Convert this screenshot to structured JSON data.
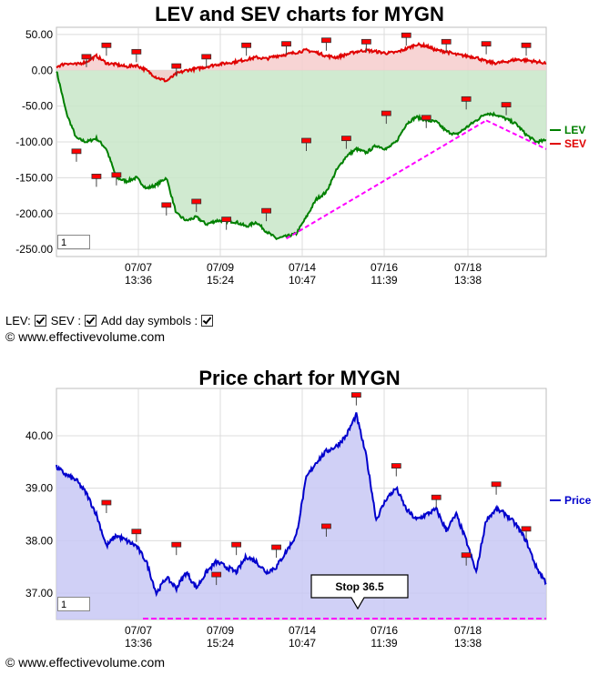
{
  "chart_data": [
    {
      "type": "line",
      "title": "LEV and SEV charts for MYGN",
      "ylim": [
        -260,
        60
      ],
      "yticks": [
        50,
        0,
        -50,
        -100,
        -150,
        -200,
        -250
      ],
      "ytick_labels": [
        "50.00",
        "0.00",
        "-50.00",
        "-100.00",
        "-150.00",
        "-200.00",
        "-250.00"
      ],
      "xticks": [
        {
          "date": "07/07",
          "time": "13:36"
        },
        {
          "date": "07/09",
          "time": "15:24"
        },
        {
          "date": "07/14",
          "time": "10:47"
        },
        {
          "date": "07/16",
          "time": "11:39"
        },
        {
          "date": "07/18",
          "time": "13:38"
        }
      ],
      "legend_position": "right",
      "grid": true,
      "series": [
        {
          "name": "LEV",
          "color": "#008000",
          "fill": "#c8e6c8",
          "values": [
            0,
            -60,
            -95,
            -100,
            -95,
            -110,
            -150,
            -155,
            -150,
            -165,
            -160,
            -150,
            -200,
            -210,
            -205,
            -215,
            -210,
            -210,
            -212,
            -218,
            -212,
            -225,
            -235,
            -232,
            -228,
            -205,
            -180,
            -170,
            -140,
            -120,
            -110,
            -115,
            -105,
            -110,
            -100,
            -75,
            -65,
            -70,
            -72,
            -85,
            -90,
            -80,
            -70,
            -60,
            -62,
            -68,
            -75,
            -90,
            -100,
            -98
          ]
        },
        {
          "name": "SEV",
          "color": "#e00000",
          "fill": "#f6cccc",
          "values": [
            5,
            10,
            8,
            12,
            20,
            10,
            8,
            5,
            7,
            0,
            -10,
            -15,
            -5,
            0,
            2,
            5,
            8,
            10,
            12,
            15,
            18,
            16,
            20,
            22,
            25,
            28,
            25,
            20,
            18,
            22,
            26,
            28,
            26,
            24,
            25,
            30,
            36,
            34,
            28,
            26,
            22,
            20,
            18,
            12,
            10,
            12,
            15,
            14,
            12,
            10
          ]
        }
      ],
      "day_markers_lev": [
        {
          "i": 2,
          "v": -115
        },
        {
          "i": 4,
          "v": -150
        },
        {
          "i": 6,
          "v": -148
        },
        {
          "i": 11,
          "v": -190
        },
        {
          "i": 14,
          "v": -185
        },
        {
          "i": 17,
          "v": -210
        },
        {
          "i": 21,
          "v": -198
        },
        {
          "i": 25,
          "v": -100
        },
        {
          "i": 29,
          "v": -97
        },
        {
          "i": 33,
          "v": -62
        },
        {
          "i": 37,
          "v": -68
        },
        {
          "i": 41,
          "v": -42
        },
        {
          "i": 45,
          "v": -50
        }
      ],
      "day_markers_sev": [
        {
          "i": 3,
          "v": 17
        },
        {
          "i": 5,
          "v": 33
        },
        {
          "i": 8,
          "v": 24
        },
        {
          "i": 12,
          "v": 4
        },
        {
          "i": 15,
          "v": 17
        },
        {
          "i": 19,
          "v": 33
        },
        {
          "i": 23,
          "v": 35
        },
        {
          "i": 27,
          "v": 40
        },
        {
          "i": 31,
          "v": 38
        },
        {
          "i": 35,
          "v": 47
        },
        {
          "i": 39,
          "v": 38
        },
        {
          "i": 43,
          "v": 35
        },
        {
          "i": 47,
          "v": 33
        }
      ],
      "trendlines": [
        {
          "from": {
            "i": 23,
            "v": -235
          },
          "to": {
            "i": 43,
            "v": -70
          }
        },
        {
          "from": {
            "i": 43,
            "v": -70
          },
          "to": {
            "i": 49,
            "v": -110
          }
        }
      ],
      "input_value": "1"
    },
    {
      "type": "area",
      "title": "Price chart for MYGN",
      "ylim": [
        36.5,
        40.9
      ],
      "yticks": [
        40.0,
        39.0,
        38.0,
        37.0
      ],
      "ytick_labels": [
        "40.00",
        "39.00",
        "38.00",
        "37.00"
      ],
      "xticks": [
        {
          "date": "07/07",
          "time": "13:36"
        },
        {
          "date": "07/09",
          "time": "15:24"
        },
        {
          "date": "07/14",
          "time": "10:47"
        },
        {
          "date": "07/16",
          "time": "11:39"
        },
        {
          "date": "07/18",
          "time": "13:38"
        }
      ],
      "legend_position": "right",
      "grid": true,
      "series": [
        {
          "name": "Price",
          "color": "#0000cc",
          "fill": "#c8c8f4",
          "values": [
            39.4,
            39.25,
            39.15,
            38.9,
            38.5,
            37.9,
            38.1,
            38.0,
            37.9,
            37.6,
            37.0,
            37.3,
            37.1,
            37.4,
            37.1,
            37.4,
            37.6,
            37.5,
            37.4,
            37.7,
            37.6,
            37.4,
            37.5,
            37.8,
            38.1,
            39.2,
            39.5,
            39.7,
            39.8,
            40.0,
            40.4,
            39.6,
            38.4,
            38.8,
            39.0,
            38.6,
            38.4,
            38.5,
            38.6,
            38.2,
            38.5,
            38.0,
            37.4,
            38.4,
            38.6,
            38.5,
            38.3,
            38.0,
            37.5,
            37.2
          ]
        }
      ],
      "day_markers": [
        {
          "i": 5,
          "v": 38.7
        },
        {
          "i": 8,
          "v": 38.15
        },
        {
          "i": 12,
          "v": 37.9
        },
        {
          "i": 16,
          "v": 37.33
        },
        {
          "i": 18,
          "v": 37.9
        },
        {
          "i": 22,
          "v": 37.85
        },
        {
          "i": 27,
          "v": 38.25
        },
        {
          "i": 30,
          "v": 40.75
        },
        {
          "i": 34,
          "v": 39.4
        },
        {
          "i": 38,
          "v": 38.8
        },
        {
          "i": 41,
          "v": 37.7
        },
        {
          "i": 44,
          "v": 39.05
        },
        {
          "i": 47,
          "v": 38.2
        }
      ],
      "stop": {
        "label": "Stop 36.5",
        "value": 36.5
      },
      "input_value": "1"
    }
  ],
  "controls": {
    "lev_label": "LEV:",
    "sev_label": "SEV :",
    "day_label": "Add day symbols :"
  },
  "copyright": "© www.effectivevolume.com"
}
